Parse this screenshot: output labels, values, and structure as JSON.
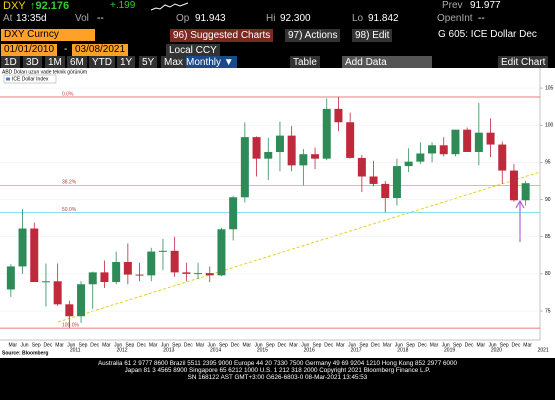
{
  "header": {
    "ticker": "DXY",
    "price": "92.176",
    "change": "+.199",
    "prev_label": "Prev",
    "prev": "91.977",
    "at_label": "At",
    "time": "13:35d",
    "vol_label": "Vol",
    "vol": "--",
    "op_label": "Op",
    "op": "91.943",
    "hi_label": "Hi",
    "hi": "92.300",
    "lo_label": "Lo",
    "lo": "91.842",
    "oi_label": "OpenInt",
    "oi": "--"
  },
  "toolbar": {
    "security": "DXY Curncy",
    "b1": "96) Suggested Charts",
    "b2": "97) Actions",
    "b3": "98) Edit",
    "template": "G 605: ICE Dollar Dec",
    "start": "01/01/2010",
    "dash": "-",
    "end": "03/08/2021",
    "ccy": "Local CCY",
    "periods": [
      "1D",
      "3D",
      "1M",
      "6M",
      "YTD",
      "1Y",
      "5Y",
      "Max"
    ],
    "freq": "Monthly ▼",
    "table": "Table",
    "add": "Add Data",
    "editchart": "Edit Chart"
  },
  "chart_data": {
    "type": "candlestick",
    "title": "ABD Doları uzun vade teknik görünüm",
    "legend": "ICE Dollar Index",
    "up_color": "#2e8b57",
    "down_color": "#c0283c",
    "candles": [
      [
        77.9,
        81.3,
        76.9,
        81.0
      ],
      [
        81.0,
        88.7,
        80.0,
        86.1
      ],
      [
        86.1,
        86.9,
        78.9,
        78.9
      ],
      [
        78.9,
        81.4,
        75.6,
        79.0
      ],
      [
        79.0,
        81.4,
        75.7,
        75.9
      ],
      [
        75.9,
        76.4,
        72.7,
        74.3
      ],
      [
        74.3,
        79.0,
        73.4,
        78.6
      ],
      [
        78.6,
        80.3,
        75.3,
        80.2
      ],
      [
        80.2,
        81.8,
        78.1,
        78.9
      ],
      [
        78.9,
        83.0,
        78.6,
        81.6
      ],
      [
        81.6,
        84.1,
        78.6,
        79.9
      ],
      [
        79.9,
        81.5,
        79.0,
        79.8
      ],
      [
        79.8,
        83.5,
        79.0,
        83.0
      ],
      [
        83.0,
        84.7,
        80.5,
        83.1
      ],
      [
        83.1,
        85.0,
        79.6,
        80.2
      ],
      [
        80.2,
        81.5,
        79.0,
        80.0
      ],
      [
        80.0,
        81.5,
        79.3,
        80.1
      ],
      [
        80.1,
        81.0,
        78.9,
        79.8
      ],
      [
        79.8,
        86.2,
        79.7,
        86.0
      ],
      [
        86.0,
        90.5,
        84.5,
        90.3
      ],
      [
        90.3,
        100.4,
        89.6,
        98.4
      ],
      [
        98.4,
        98.5,
        93.1,
        95.5
      ],
      [
        95.5,
        98.3,
        92.6,
        96.4
      ],
      [
        96.4,
        100.5,
        93.8,
        98.6
      ],
      [
        98.6,
        99.9,
        93.8,
        94.6
      ],
      [
        94.6,
        96.8,
        91.9,
        96.1
      ],
      [
        96.1,
        97.0,
        94.1,
        95.5
      ],
      [
        95.5,
        103.6,
        95.3,
        102.2
      ],
      [
        102.2,
        103.8,
        99.2,
        100.4
      ],
      [
        100.4,
        101.7,
        95.5,
        95.6
      ],
      [
        95.6,
        96.0,
        91.0,
        93.1
      ],
      [
        93.1,
        95.2,
        91.8,
        92.1
      ],
      [
        92.1,
        92.5,
        88.3,
        90.2
      ],
      [
        90.2,
        95.5,
        89.2,
        94.5
      ],
      [
        94.5,
        96.9,
        93.7,
        95.1
      ],
      [
        95.1,
        97.7,
        94.8,
        96.2
      ],
      [
        96.2,
        97.7,
        95.0,
        97.3
      ],
      [
        97.3,
        98.4,
        95.8,
        96.1
      ],
      [
        96.1,
        99.4,
        95.8,
        99.4
      ],
      [
        99.4,
        99.7,
        96.4,
        96.4
      ],
      [
        96.4,
        103.0,
        94.6,
        99.0
      ],
      [
        99.0,
        100.9,
        95.7,
        97.4
      ],
      [
        97.4,
        97.8,
        92.1,
        93.9
      ],
      [
        93.9,
        94.8,
        89.7,
        89.9
      ],
      [
        89.9,
        92.5,
        89.2,
        92.2
      ]
    ],
    "ylim": [
      71.1,
      107.7
    ],
    "yticks": [
      75,
      80,
      85,
      90,
      95,
      100,
      105
    ],
    "fib": [
      {
        "label": "0.0%",
        "value": 103.8,
        "color": "#e05050"
      },
      {
        "label": "38.2%",
        "value": 91.9,
        "color": "#66cc44"
      },
      {
        "label": "50.0%",
        "value": 88.25,
        "color": "#44ccdd"
      },
      {
        "label": "100.0%",
        "value": 72.7,
        "color": "#e05050"
      }
    ],
    "months": [
      "Mar",
      "Jun",
      "Sep",
      "Dec"
    ],
    "years": [
      "2011",
      "2012",
      "2013",
      "2014",
      "2015",
      "2016",
      "2017",
      "2018",
      "2019",
      "2020",
      "2021"
    ]
  },
  "footer": {
    "source": "Source: Bloomberg",
    "line1": "Australia 61 2 9777 8600 Brazil 5511 2395 9000 Europe 44 20 7330 7500 Germany 49 69 9204 1210 Hong Kong 852 2977 6000",
    "line2": "Japan 81 3 4565 8900    Singapore 65 6212 1000    U.S. 1 212 318 2000    Copyright 2021 Bloomberg Finance L.P.",
    "line3": "SN 168122 AST  GMT+3:00 G626-6803-0 08-Mar-2021 13:45:53"
  }
}
